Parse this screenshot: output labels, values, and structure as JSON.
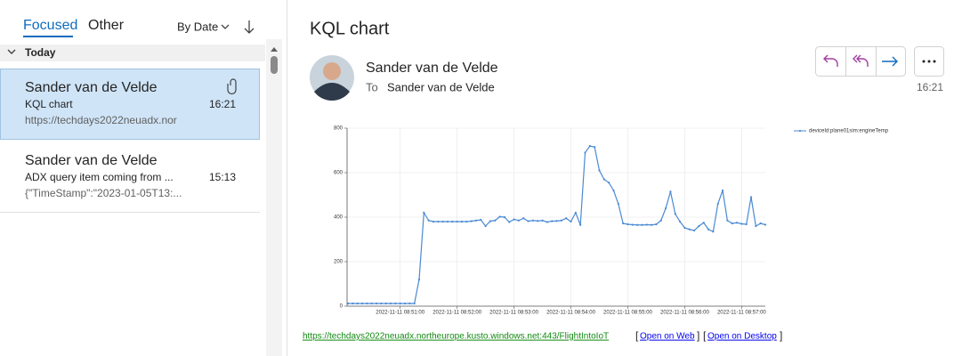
{
  "tabs": [
    "Focused",
    "Other"
  ],
  "sort": "By Date",
  "group": "Today",
  "messages": [
    {
      "sender": "Sander van de Velde",
      "subject": "KQL chart",
      "time": "16:21",
      "preview": "https://techdays2022neuadx.nor"
    },
    {
      "sender": "Sander van de Velde",
      "subject": "ADX query item coming from ...",
      "time": "15:13",
      "preview": "{\"TimeStamp\":\"2023-01-05T13:..."
    }
  ],
  "reading": {
    "title": "KQL chart",
    "sender": "Sander van de Velde",
    "to_label": "To",
    "to": "Sander van de Velde",
    "time": "16:21",
    "link": "https://techdays2022neuadx.northeurope.kusto.windows.net:443/FlightIntoIoT",
    "open_bracket": "[",
    "close_bracket": "]",
    "actions": [
      "Open on Web",
      "Open on Desktop"
    ]
  },
  "chart_data": {
    "type": "line",
    "x": [
      "2022-11-11 08:50:05",
      "2022-11-11 08:50:10",
      "2022-11-11 08:50:15",
      "2022-11-11 08:50:20",
      "2022-11-11 08:50:25",
      "2022-11-11 08:50:30",
      "2022-11-11 08:50:35",
      "2022-11-11 08:50:40",
      "2022-11-11 08:50:45",
      "2022-11-11 08:50:50",
      "2022-11-11 08:50:55",
      "2022-11-11 08:51:00",
      "2022-11-11 08:51:05",
      "2022-11-11 08:51:10",
      "2022-11-11 08:51:15",
      "2022-11-11 08:51:20",
      "2022-11-11 08:51:25",
      "2022-11-11 08:51:30",
      "2022-11-11 08:51:35",
      "2022-11-11 08:51:40",
      "2022-11-11 08:51:45",
      "2022-11-11 08:51:50",
      "2022-11-11 08:51:55",
      "2022-11-11 08:52:00",
      "2022-11-11 08:52:05",
      "2022-11-11 08:52:10",
      "2022-11-11 08:52:15",
      "2022-11-11 08:52:20",
      "2022-11-11 08:52:25",
      "2022-11-11 08:52:30",
      "2022-11-11 08:52:35",
      "2022-11-11 08:52:40",
      "2022-11-11 08:52:45",
      "2022-11-11 08:52:50",
      "2022-11-11 08:52:55",
      "2022-11-11 08:53:00",
      "2022-11-11 08:53:05",
      "2022-11-11 08:53:10",
      "2022-11-11 08:53:15",
      "2022-11-11 08:53:20",
      "2022-11-11 08:53:25",
      "2022-11-11 08:53:30",
      "2022-11-11 08:53:35",
      "2022-11-11 08:53:40",
      "2022-11-11 08:53:45",
      "2022-11-11 08:53:50",
      "2022-11-11 08:53:55",
      "2022-11-11 08:54:00",
      "2022-11-11 08:54:05",
      "2022-11-11 08:54:10",
      "2022-11-11 08:54:15",
      "2022-11-11 08:54:20",
      "2022-11-11 08:54:25",
      "2022-11-11 08:54:30",
      "2022-11-11 08:54:35",
      "2022-11-11 08:54:40",
      "2022-11-11 08:54:45",
      "2022-11-11 08:54:50",
      "2022-11-11 08:54:55",
      "2022-11-11 08:55:00",
      "2022-11-11 08:55:05",
      "2022-11-11 08:55:10",
      "2022-11-11 08:55:15",
      "2022-11-11 08:55:20",
      "2022-11-11 08:55:25",
      "2022-11-11 08:55:30",
      "2022-11-11 08:55:35",
      "2022-11-11 08:55:40",
      "2022-11-11 08:55:45",
      "2022-11-11 08:55:50",
      "2022-11-11 08:55:55",
      "2022-11-11 08:56:00",
      "2022-11-11 08:56:05",
      "2022-11-11 08:56:10",
      "2022-11-11 08:56:15",
      "2022-11-11 08:56:20",
      "2022-11-11 08:56:25",
      "2022-11-11 08:56:30",
      "2022-11-11 08:56:35",
      "2022-11-11 08:56:40",
      "2022-11-11 08:56:45",
      "2022-11-11 08:56:50",
      "2022-11-11 08:56:55",
      "2022-11-11 08:57:00",
      "2022-11-11 08:57:05",
      "2022-11-11 08:57:10",
      "2022-11-11 08:57:15",
      "2022-11-11 08:57:20",
      "2022-11-11 08:57:25"
    ],
    "series": [
      {
        "name": "deviceId:plane01sim:engineTemp",
        "color": "#4a8ad4",
        "values": [
          12,
          12,
          12,
          12,
          12,
          12,
          12,
          12,
          12,
          12,
          12,
          12,
          12,
          12,
          12,
          120,
          420,
          385,
          380,
          380,
          380,
          380,
          380,
          380,
          380,
          380,
          382,
          385,
          388,
          360,
          382,
          385,
          402,
          400,
          378,
          390,
          385,
          395,
          382,
          385,
          383,
          385,
          378,
          382,
          383,
          385,
          395,
          380,
          420,
          365,
          690,
          720,
          715,
          610,
          570,
          555,
          520,
          460,
          372,
          368,
          366,
          365,
          365,
          366,
          365,
          368,
          385,
          440,
          515,
          415,
          380,
          352,
          345,
          340,
          360,
          375,
          345,
          335,
          460,
          520,
          385,
          372,
          375,
          370,
          368,
          490,
          360,
          372,
          366
        ]
      }
    ],
    "xlim": [
      "2022-11-11 08:50:04",
      "2022-11-11 08:57:25"
    ],
    "xticks": [
      "2022-11-11 08:51:00",
      "2022-11-11 08:52:00",
      "2022-11-11 08:53:00",
      "2022-11-11 08:54:00",
      "2022-11-11 08:55:00",
      "2022-11-11 08:56:00",
      "2022-11-11 08:57:00"
    ],
    "ylim": [
      0,
      800
    ],
    "yticks": [
      0,
      200,
      400,
      600,
      800
    ],
    "grid": true,
    "legend": "top-right"
  }
}
